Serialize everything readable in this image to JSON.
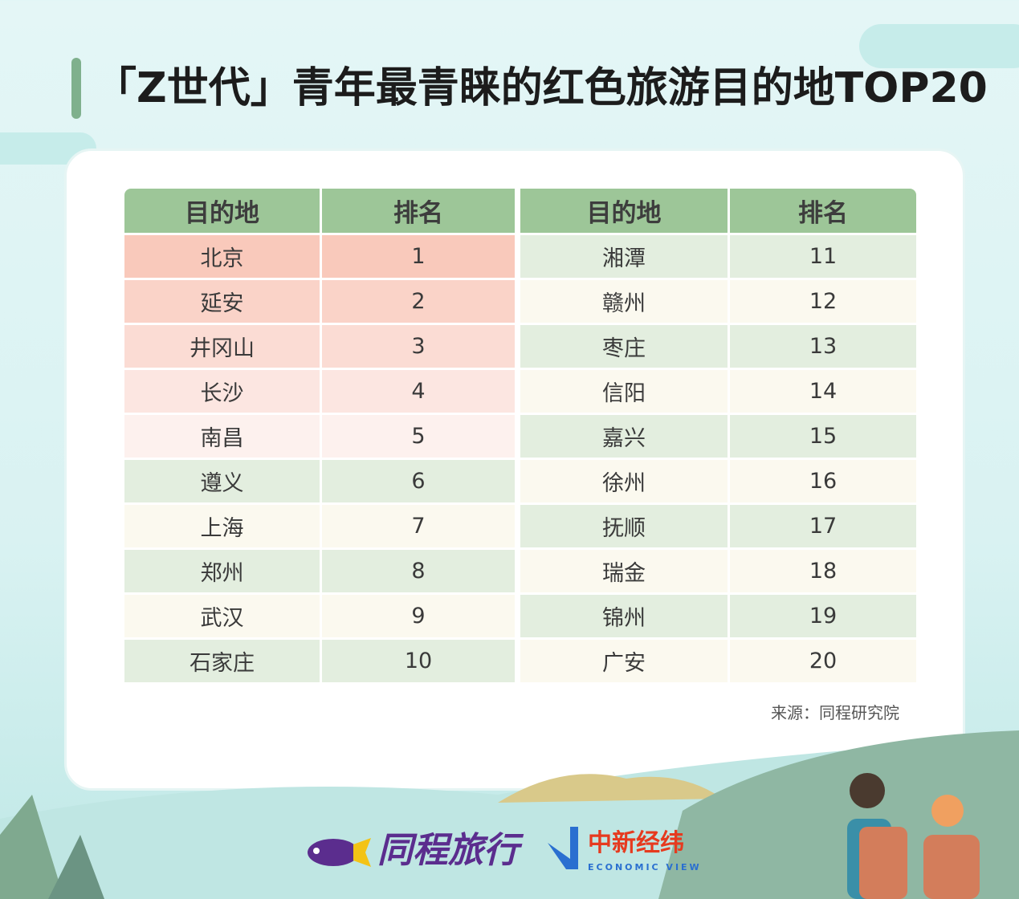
{
  "title": "「Z世代」青年最青睐的红色旅游目的地TOP20",
  "table": {
    "headers": [
      "目的地",
      "排名",
      "目的地",
      "排名"
    ],
    "left": [
      [
        "北京",
        "1"
      ],
      [
        "延安",
        "2"
      ],
      [
        "井冈山",
        "3"
      ],
      [
        "长沙",
        "4"
      ],
      [
        "南昌",
        "5"
      ],
      [
        "遵义",
        "6"
      ],
      [
        "上海",
        "7"
      ],
      [
        "郑州",
        "8"
      ],
      [
        "武汉",
        "9"
      ],
      [
        "石家庄",
        "10"
      ]
    ],
    "right": [
      [
        "湘潭",
        "11"
      ],
      [
        "赣州",
        "12"
      ],
      [
        "枣庄",
        "13"
      ],
      [
        "信阳",
        "14"
      ],
      [
        "嘉兴",
        "15"
      ],
      [
        "徐州",
        "16"
      ],
      [
        "抚顺",
        "17"
      ],
      [
        "瑞金",
        "18"
      ],
      [
        "锦州",
        "19"
      ],
      [
        "广安",
        "20"
      ]
    ]
  },
  "source": "来源：同程研究院",
  "logos": {
    "tongcheng": "同程旅行",
    "zhongxin": "中新经纬",
    "zhongxin_en": "ECONOMIC VIEW"
  },
  "colors": {
    "header": "#9dc698",
    "top5": [
      "#f9c9bb",
      "#fad3c8",
      "#fbdcd4",
      "#fce6e1",
      "#fdf1ee"
    ],
    "green_row": "#e3eedf",
    "cream_row": "#fbf9ef",
    "title_bar": "#7fb08d"
  }
}
